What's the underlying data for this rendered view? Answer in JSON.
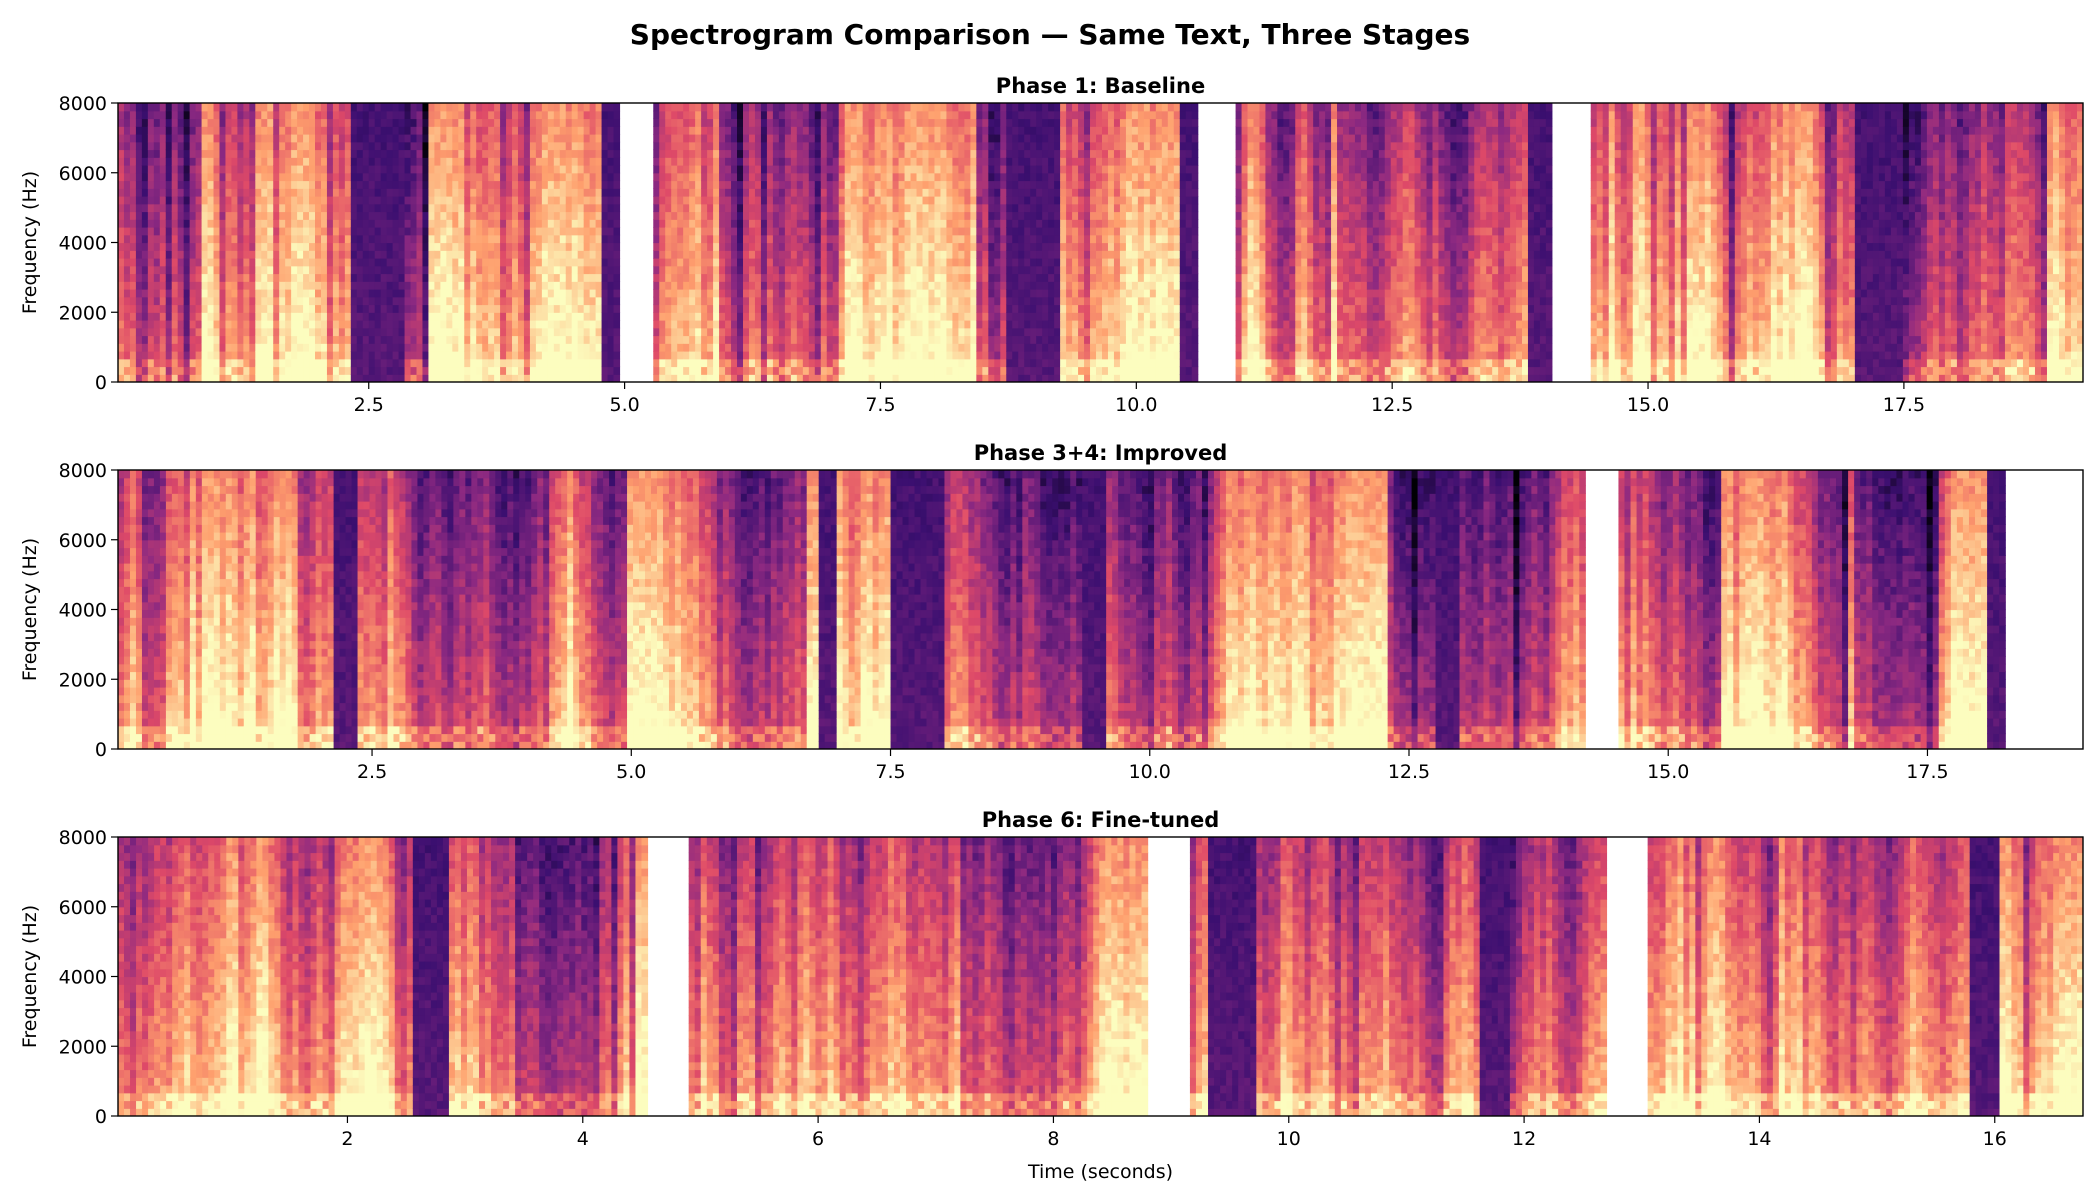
{
  "figure": {
    "title": "Spectrogram Comparison — Same Text, Three Stages",
    "colormap": [
      "#000004",
      "#3b0f70",
      "#8c2981",
      "#de4968",
      "#fe9f6d",
      "#fcfdbf"
    ]
  },
  "chart_data": [
    {
      "type": "heatmap",
      "title": "Phase 1: Baseline",
      "xlabel": "",
      "ylabel": "Frequency (Hz)",
      "xlim": [
        0.05,
        19.25
      ],
      "ylim": [
        0,
        8000
      ],
      "xticks": [
        2.5,
        5.0,
        7.5,
        10.0,
        12.5,
        15.0,
        17.5
      ],
      "xtick_labels": [
        "2.5",
        "5.0",
        "7.5",
        "10.0",
        "12.5",
        "15.0",
        "17.5"
      ],
      "yticks": [
        0,
        2000,
        4000,
        6000,
        8000
      ],
      "ytick_labels": [
        "0",
        "2000",
        "4000",
        "6000",
        "8000"
      ],
      "segments": [
        [
          0.05,
          4.95
        ],
        [
          5.28,
          10.6
        ],
        [
          10.97,
          14.06
        ],
        [
          14.44,
          19.25
        ]
      ],
      "quiet_regions": [
        [
          2.35,
          2.85
        ],
        [
          8.75,
          9.25
        ],
        [
          10.45,
          10.6
        ],
        [
          13.85,
          14.06
        ],
        [
          17.05,
          17.5
        ],
        [
          4.8,
          4.95
        ]
      ],
      "seed": 11
    },
    {
      "type": "heatmap",
      "title": "Phase 3+4: Improved",
      "xlabel": "",
      "ylabel": "Frequency (Hz)",
      "xlim": [
        0.05,
        19.0
      ],
      "ylim": [
        0,
        8000
      ],
      "xticks": [
        2.5,
        5.0,
        7.5,
        10.0,
        12.5,
        15.0,
        17.5
      ],
      "xtick_labels": [
        "2.5",
        "5.0",
        "7.5",
        "10.0",
        "12.5",
        "15.0",
        "17.5"
      ],
      "yticks": [
        0,
        2000,
        4000,
        6000,
        8000
      ],
      "ytick_labels": [
        "0",
        "2000",
        "4000",
        "6000",
        "8000"
      ],
      "segments": [
        [
          0.05,
          14.2
        ],
        [
          14.52,
          18.25
        ]
      ],
      "quiet_regions": [
        [
          2.15,
          2.35
        ],
        [
          6.8,
          7.0
        ],
        [
          7.5,
          8.0
        ],
        [
          9.35,
          9.6
        ],
        [
          12.75,
          13.0
        ],
        [
          18.1,
          18.25
        ]
      ],
      "seed": 23
    },
    {
      "type": "heatmap",
      "title": "Phase 6: Fine-tuned",
      "xlabel": "Time (seconds)",
      "ylabel": "Frequency (Hz)",
      "xlim": [
        0.05,
        16.75
      ],
      "ylim": [
        0,
        8000
      ],
      "xticks": [
        2,
        4,
        6,
        8,
        10,
        12,
        14,
        16
      ],
      "xtick_labels": [
        "2",
        "4",
        "6",
        "8",
        "10",
        "12",
        "14",
        "16"
      ],
      "yticks": [
        0,
        2000,
        4000,
        6000,
        8000
      ],
      "ytick_labels": [
        "0",
        "2000",
        "4000",
        "6000",
        "8000"
      ],
      "segments": [
        [
          0.05,
          4.55
        ],
        [
          4.9,
          8.8
        ],
        [
          9.16,
          12.7
        ],
        [
          13.05,
          16.75
        ]
      ],
      "quiet_regions": [
        [
          2.55,
          2.85
        ],
        [
          9.3,
          9.7
        ],
        [
          11.6,
          11.9
        ],
        [
          15.8,
          16.05
        ]
      ],
      "seed": 37
    }
  ]
}
